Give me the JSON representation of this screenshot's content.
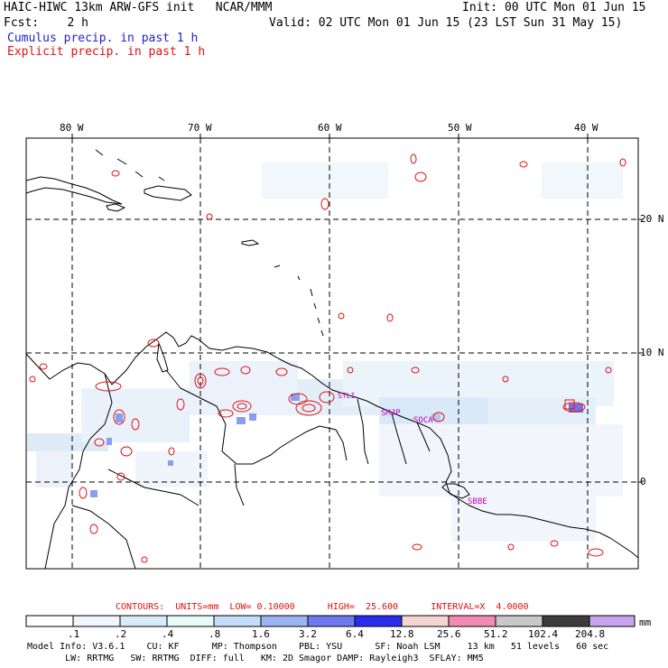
{
  "header": {
    "line1_left": "HAIC-HIWC 13km ARW-GFS init   NCAR/MMM",
    "line1_right": "Init: 00 UTC Mon 01 Jun 15",
    "line2_left": "Fcst:    2 h",
    "line2_right": "Valid: 02 UTC Mon 01 Jun 15 (23 LST Sun 31 May 15)",
    "cumulus_label": "Cumulus precip. in past 1 h",
    "explicit_label": "Explicit precip. in past 1 h"
  },
  "map": {
    "lon_labels": [
      "80 W",
      "70 W",
      "60 W",
      "50 W",
      "40 W"
    ],
    "lat_labels": [
      "20 N",
      "10 N",
      "0"
    ],
    "stations": [
      "SMJP",
      "SOCA",
      "SBBE",
      "STLI"
    ],
    "colors": {
      "contour": "#e01010",
      "coast": "#000000",
      "grid": "#000000",
      "station": "#c000c0"
    }
  },
  "contours_line": "CONTOURS:  UNITS=mm  LOW= 0.10000      HIGH=  25.600      INTERVAL=X  4.0000",
  "colorbar": {
    "labels": [
      ".1",
      ".2",
      ".4",
      ".8",
      "1.6",
      "3.2",
      "6.4",
      "12.8",
      "25.6",
      "51.2",
      "102.4",
      "204.8"
    ],
    "unit": "mm",
    "colors": [
      "#ffffff",
      "#eef5fc",
      "#d9eaf8",
      "#e6fbf8",
      "#c4dcf8",
      "#9cb4f4",
      "#6f7af0",
      "#2a2cf0",
      "#f5d4d4",
      "#f28cb4",
      "#c8c8c8",
      "#3c3c3c",
      "#c9a4f0"
    ]
  },
  "footer": {
    "line1": "Model Info: V3.6.1    CU: KF      MP: Thompson    PBL: YSU      SF: Noah LSM     13 km   51 levels   60 sec",
    "line2": "       LW: RRTMG   SW: RRTMG  DIFF: full   KM: 2D Smagor DAMP: Rayleigh3  SFLAY: MM5"
  }
}
